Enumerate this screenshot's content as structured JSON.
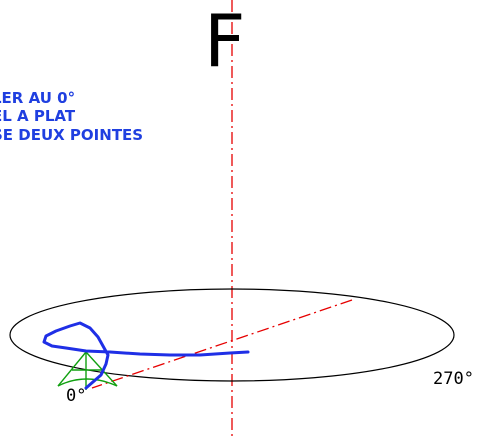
{
  "title_letter": "F",
  "notes": [
    "LER AU 0°",
    "EL A PLAT",
    "SE DEUX POINTES"
  ],
  "labels": {
    "angle_zero": "0°",
    "angle_270": "270°"
  },
  "colors": {
    "axis": "#e60000",
    "notes": "#1f3fe0",
    "curve": "#1f2fe6",
    "tripod": "#10a010",
    "outline": "#000000"
  }
}
